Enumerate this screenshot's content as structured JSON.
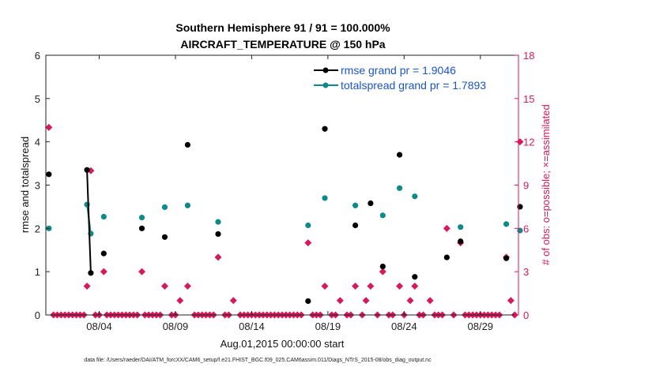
{
  "chart_data": {
    "type": "scatter",
    "title_lines": [
      "Southern Hemisphere 91 / 91 = 100.000%",
      "AIRCRAFT_TEMPERATURE @ 150 hPa"
    ],
    "xlabel": "Aug.01,2015 00:00:00 start",
    "ylabel_left": "rmse and totalspread",
    "ylabel_right": "# of obs: o=possible; ×=assimilated",
    "x_range_days": [
      0.5,
      31.5
    ],
    "x_ticks": [
      {
        "day": 4,
        "label": "08/04"
      },
      {
        "day": 9,
        "label": "08/09"
      },
      {
        "day": 14,
        "label": "08/14"
      },
      {
        "day": 19,
        "label": "08/19"
      },
      {
        "day": 24,
        "label": "08/24"
      },
      {
        "day": 29,
        "label": "08/29"
      }
    ],
    "ylim_left": [
      0,
      6
    ],
    "yticks_left": [
      "0",
      "1",
      "2",
      "3",
      "4",
      "5",
      "6"
    ],
    "ylim_right": [
      0,
      18
    ],
    "yticks_right": [
      "0",
      "3",
      "6",
      "9",
      "12",
      "15",
      "18"
    ],
    "colors": {
      "rmse": "#000000",
      "spread": "#0f8a8a",
      "obs": "#d6195a",
      "legend_text": "#1a55c8"
    },
    "legend": {
      "rmse": "rmse grand pr = 1.9046",
      "spread": "totalspread grand pr = 1.7893"
    },
    "series": [
      {
        "name": "rmse",
        "points": [
          [
            0.7,
            3.25
          ],
          [
            3.2,
            3.35
          ],
          [
            3.45,
            0.97
          ],
          [
            4.3,
            1.42
          ],
          [
            6.8,
            2.0
          ],
          [
            8.3,
            1.8
          ],
          [
            9.8,
            3.93
          ],
          [
            11.8,
            1.87
          ],
          [
            17.7,
            0.32
          ],
          [
            18.8,
            4.3
          ],
          [
            20.8,
            2.07
          ],
          [
            21.8,
            2.58
          ],
          [
            22.6,
            1.12
          ],
          [
            23.7,
            3.7
          ],
          [
            24.7,
            0.88
          ],
          [
            26.8,
            1.33
          ],
          [
            27.7,
            1.7
          ],
          [
            30.7,
            1.31
          ],
          [
            31.6,
            2.5
          ]
        ],
        "lines": [
          [
            [
              3.2,
              3.35
            ],
            [
              3.45,
              0.97
            ]
          ]
        ]
      },
      {
        "name": "totalspread",
        "points": [
          [
            0.7,
            2.0
          ],
          [
            3.2,
            2.55
          ],
          [
            3.45,
            1.88
          ],
          [
            4.3,
            2.27
          ],
          [
            6.8,
            2.25
          ],
          [
            8.3,
            2.49
          ],
          [
            9.8,
            2.53
          ],
          [
            11.8,
            2.15
          ],
          [
            17.7,
            2.07
          ],
          [
            18.8,
            2.7
          ],
          [
            20.8,
            2.53
          ],
          [
            22.6,
            2.3
          ],
          [
            23.7,
            2.93
          ],
          [
            24.7,
            2.74
          ],
          [
            27.7,
            2.03
          ],
          [
            30.7,
            2.1
          ],
          [
            31.6,
            1.95
          ]
        ],
        "lines": [
          [
            [
              3.2,
              2.55
            ],
            [
              3.45,
              1.88
            ]
          ]
        ]
      },
      {
        "name": "obs_count",
        "axis": "right",
        "points": [
          [
            0.7,
            13
          ],
          [
            3.2,
            2
          ],
          [
            3.45,
            10
          ],
          [
            4.3,
            3
          ],
          [
            6.8,
            3
          ],
          [
            8.3,
            2
          ],
          [
            9.3,
            1
          ],
          [
            9.8,
            2
          ],
          [
            11.8,
            4
          ],
          [
            12.8,
            1
          ],
          [
            17.7,
            5
          ],
          [
            18.8,
            2
          ],
          [
            19.8,
            1
          ],
          [
            20.8,
            2
          ],
          [
            21.5,
            1
          ],
          [
            21.8,
            2
          ],
          [
            22.6,
            3
          ],
          [
            23.7,
            2
          ],
          [
            24.4,
            1
          ],
          [
            24.7,
            2
          ],
          [
            25.7,
            1
          ],
          [
            26.8,
            6
          ],
          [
            27.7,
            5
          ],
          [
            30.7,
            4
          ],
          [
            31.0,
            1
          ],
          [
            31.6,
            12
          ]
        ],
        "zeros_range": [
          0.5,
          31.5
        ],
        "zeros_step": 0.25
      }
    ],
    "footnote": "data file: /Users/raeder/DAI/ATM_forcXX/CAM6_setup/f.e21.FHIST_BGC.f09_025.CAM6assim.011/Diags_NTrS_2015-08/obs_diag_output.nc"
  }
}
